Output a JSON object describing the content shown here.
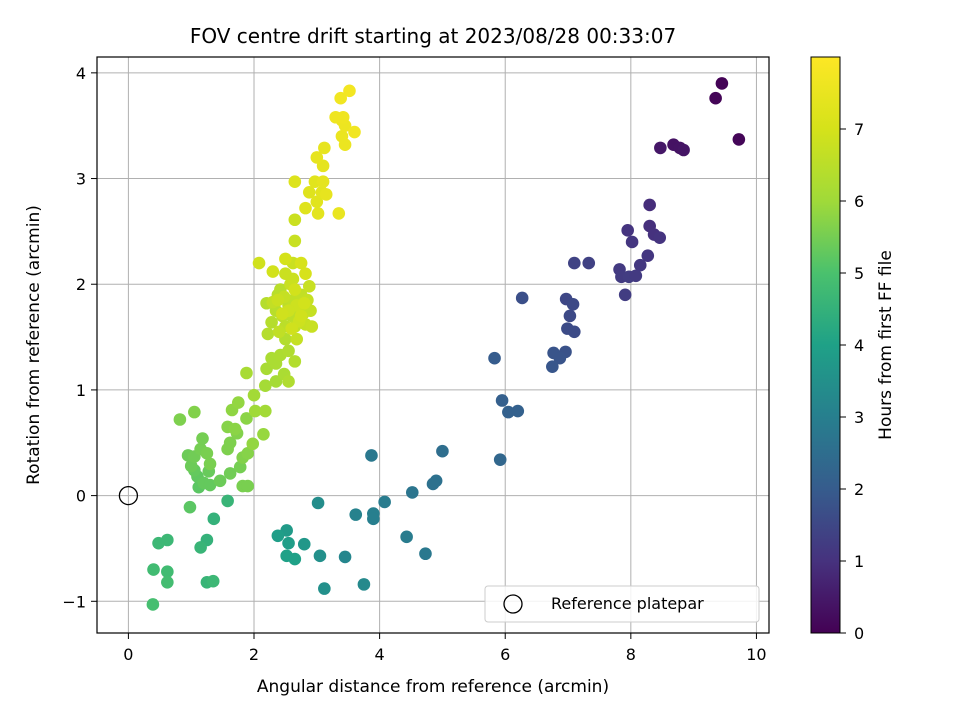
{
  "chart_data": {
    "type": "scatter",
    "title": "FOV centre drift starting at 2023/08/28 00:33:07",
    "xlabel": "Angular distance from reference (arcmin)",
    "ylabel": "Rotation from reference (arcmin)",
    "xlim": [
      -0.5,
      10.2
    ],
    "ylim": [
      -1.3,
      4.15
    ],
    "xticks": [
      0,
      2,
      4,
      6,
      8,
      10
    ],
    "yticks": [
      -1,
      0,
      1,
      2,
      3,
      4
    ],
    "grid": true,
    "legend": {
      "position": "lower-right",
      "entries": [
        "Reference platepar"
      ]
    },
    "colorbar": {
      "label": "Hours from first FF file",
      "range": [
        0,
        8
      ],
      "ticks": [
        0,
        1,
        2,
        3,
        4,
        5,
        6,
        7
      ],
      "colormap": "viridis"
    },
    "reference_point": {
      "x": 0,
      "y": 0,
      "name": "Reference platepar"
    },
    "points": [
      {
        "x": 9.45,
        "y": 3.9,
        "h": 0.05
      },
      {
        "x": 9.35,
        "y": 3.76,
        "h": 0.08
      },
      {
        "x": 9.72,
        "y": 3.37,
        "h": 0.1
      },
      {
        "x": 8.68,
        "y": 3.32,
        "h": 0.35
      },
      {
        "x": 8.78,
        "y": 3.29,
        "h": 0.37
      },
      {
        "x": 8.84,
        "y": 3.27,
        "h": 0.4
      },
      {
        "x": 8.47,
        "y": 3.29,
        "h": 0.45
      },
      {
        "x": 8.3,
        "y": 2.75,
        "h": 0.9
      },
      {
        "x": 8.3,
        "y": 2.55,
        "h": 0.95
      },
      {
        "x": 8.37,
        "y": 2.47,
        "h": 1.0
      },
      {
        "x": 8.46,
        "y": 2.44,
        "h": 1.05
      },
      {
        "x": 8.27,
        "y": 2.27,
        "h": 1.1
      },
      {
        "x": 7.95,
        "y": 2.51,
        "h": 1.05
      },
      {
        "x": 8.02,
        "y": 2.4,
        "h": 1.1
      },
      {
        "x": 8.15,
        "y": 2.18,
        "h": 1.15
      },
      {
        "x": 7.82,
        "y": 2.14,
        "h": 1.2
      },
      {
        "x": 7.85,
        "y": 2.07,
        "h": 1.22
      },
      {
        "x": 7.97,
        "y": 2.07,
        "h": 1.25
      },
      {
        "x": 8.08,
        "y": 2.08,
        "h": 1.2
      },
      {
        "x": 7.91,
        "y": 1.9,
        "h": 1.25
      },
      {
        "x": 7.1,
        "y": 2.2,
        "h": 1.4
      },
      {
        "x": 7.33,
        "y": 2.2,
        "h": 1.35
      },
      {
        "x": 6.97,
        "y": 1.86,
        "h": 1.5
      },
      {
        "x": 7.08,
        "y": 1.81,
        "h": 1.55
      },
      {
        "x": 7.03,
        "y": 1.7,
        "h": 1.55
      },
      {
        "x": 6.99,
        "y": 1.58,
        "h": 1.6
      },
      {
        "x": 7.1,
        "y": 1.55,
        "h": 1.6
      },
      {
        "x": 6.27,
        "y": 1.87,
        "h": 1.7
      },
      {
        "x": 6.77,
        "y": 1.35,
        "h": 1.8
      },
      {
        "x": 6.96,
        "y": 1.36,
        "h": 1.75
      },
      {
        "x": 6.87,
        "y": 1.3,
        "h": 1.8
      },
      {
        "x": 6.75,
        "y": 1.22,
        "h": 1.85
      },
      {
        "x": 5.83,
        "y": 1.3,
        "h": 2.0
      },
      {
        "x": 5.95,
        "y": 0.9,
        "h": 2.1
      },
      {
        "x": 6.05,
        "y": 0.79,
        "h": 2.15
      },
      {
        "x": 6.2,
        "y": 0.8,
        "h": 2.15
      },
      {
        "x": 5.92,
        "y": 0.34,
        "h": 2.3
      },
      {
        "x": 5.0,
        "y": 0.42,
        "h": 2.5
      },
      {
        "x": 4.9,
        "y": 0.14,
        "h": 2.6
      },
      {
        "x": 4.85,
        "y": 0.11,
        "h": 2.6
      },
      {
        "x": 4.52,
        "y": 0.03,
        "h": 2.7
      },
      {
        "x": 3.87,
        "y": 0.38,
        "h": 2.8
      },
      {
        "x": 4.08,
        "y": -0.06,
        "h": 2.9
      },
      {
        "x": 3.9,
        "y": -0.17,
        "h": 3.0
      },
      {
        "x": 3.9,
        "y": -0.22,
        "h": 3.0
      },
      {
        "x": 3.62,
        "y": -0.18,
        "h": 3.1
      },
      {
        "x": 4.43,
        "y": -0.39,
        "h": 2.9
      },
      {
        "x": 4.73,
        "y": -0.55,
        "h": 2.8
      },
      {
        "x": 3.45,
        "y": -0.58,
        "h": 3.2
      },
      {
        "x": 3.75,
        "y": -0.84,
        "h": 3.3
      },
      {
        "x": 3.02,
        "y": -0.07,
        "h": 3.4
      },
      {
        "x": 3.05,
        "y": -0.57,
        "h": 3.5
      },
      {
        "x": 3.12,
        "y": -0.88,
        "h": 3.5
      },
      {
        "x": 2.8,
        "y": -0.46,
        "h": 3.7
      },
      {
        "x": 2.52,
        "y": -0.33,
        "h": 3.8
      },
      {
        "x": 2.38,
        "y": -0.38,
        "h": 3.9
      },
      {
        "x": 2.55,
        "y": -0.45,
        "h": 3.9
      },
      {
        "x": 2.52,
        "y": -0.57,
        "h": 4.0
      },
      {
        "x": 2.65,
        "y": -0.6,
        "h": 4.0
      },
      {
        "x": 1.36,
        "y": -0.22,
        "h": 4.5
      },
      {
        "x": 1.58,
        "y": -0.05,
        "h": 4.6
      },
      {
        "x": 1.25,
        "y": -0.42,
        "h": 4.5
      },
      {
        "x": 1.15,
        "y": -0.49,
        "h": 4.6
      },
      {
        "x": 1.25,
        "y": -0.82,
        "h": 4.6
      },
      {
        "x": 1.35,
        "y": -0.81,
        "h": 4.7
      },
      {
        "x": 0.62,
        "y": -0.42,
        "h": 4.7
      },
      {
        "x": 0.48,
        "y": -0.45,
        "h": 4.7
      },
      {
        "x": 0.62,
        "y": -0.72,
        "h": 4.8
      },
      {
        "x": 0.4,
        "y": -0.7,
        "h": 4.8
      },
      {
        "x": 0.62,
        "y": -0.82,
        "h": 4.85
      },
      {
        "x": 0.39,
        "y": -1.03,
        "h": 4.9
      },
      {
        "x": 0.98,
        "y": -0.11,
        "h": 5.2
      },
      {
        "x": 1.12,
        "y": 0.08,
        "h": 5.2
      },
      {
        "x": 1.1,
        "y": 0.18,
        "h": 5.25
      },
      {
        "x": 1.05,
        "y": 0.24,
        "h": 5.3
      },
      {
        "x": 1.2,
        "y": 0.12,
        "h": 5.3
      },
      {
        "x": 1.28,
        "y": 0.23,
        "h": 5.35
      },
      {
        "x": 1.3,
        "y": 0.1,
        "h": 5.3
      },
      {
        "x": 1.46,
        "y": 0.14,
        "h": 5.4
      },
      {
        "x": 1.62,
        "y": 0.21,
        "h": 5.45
      },
      {
        "x": 1.78,
        "y": 0.27,
        "h": 5.5
      },
      {
        "x": 1.82,
        "y": 0.09,
        "h": 5.55
      },
      {
        "x": 1.9,
        "y": 0.09,
        "h": 5.55
      },
      {
        "x": 0.95,
        "y": 0.38,
        "h": 5.4
      },
      {
        "x": 1.0,
        "y": 0.28,
        "h": 5.4
      },
      {
        "x": 1.05,
        "y": 0.37,
        "h": 5.45
      },
      {
        "x": 1.15,
        "y": 0.44,
        "h": 5.5
      },
      {
        "x": 1.18,
        "y": 0.54,
        "h": 5.5
      },
      {
        "x": 1.25,
        "y": 0.4,
        "h": 5.55
      },
      {
        "x": 1.3,
        "y": 0.3,
        "h": 5.55
      },
      {
        "x": 1.58,
        "y": 0.44,
        "h": 5.6
      },
      {
        "x": 1.62,
        "y": 0.5,
        "h": 5.6
      },
      {
        "x": 1.73,
        "y": 0.59,
        "h": 5.65
      },
      {
        "x": 1.82,
        "y": 0.36,
        "h": 5.65
      },
      {
        "x": 1.9,
        "y": 0.4,
        "h": 5.7
      },
      {
        "x": 0.82,
        "y": 0.72,
        "h": 5.6
      },
      {
        "x": 1.05,
        "y": 0.79,
        "h": 5.65
      },
      {
        "x": 1.58,
        "y": 0.65,
        "h": 5.7
      },
      {
        "x": 1.7,
        "y": 0.63,
        "h": 5.75
      },
      {
        "x": 1.88,
        "y": 0.73,
        "h": 5.75
      },
      {
        "x": 1.65,
        "y": 0.81,
        "h": 5.8
      },
      {
        "x": 1.75,
        "y": 0.88,
        "h": 5.85
      },
      {
        "x": 1.98,
        "y": 0.49,
        "h": 5.85
      },
      {
        "x": 2.15,
        "y": 0.58,
        "h": 5.9
      },
      {
        "x": 2.02,
        "y": 0.8,
        "h": 6.0
      },
      {
        "x": 2.18,
        "y": 0.8,
        "h": 6.05
      },
      {
        "x": 2.0,
        "y": 0.95,
        "h": 6.05
      },
      {
        "x": 2.18,
        "y": 1.04,
        "h": 6.1
      },
      {
        "x": 2.35,
        "y": 1.08,
        "h": 6.1
      },
      {
        "x": 1.88,
        "y": 1.16,
        "h": 6.15
      },
      {
        "x": 2.2,
        "y": 1.2,
        "h": 6.15
      },
      {
        "x": 2.35,
        "y": 1.25,
        "h": 6.2
      },
      {
        "x": 2.28,
        "y": 1.3,
        "h": 6.2
      },
      {
        "x": 2.42,
        "y": 1.33,
        "h": 6.25
      },
      {
        "x": 2.48,
        "y": 1.15,
        "h": 6.2
      },
      {
        "x": 2.55,
        "y": 1.08,
        "h": 6.3
      },
      {
        "x": 2.55,
        "y": 1.37,
        "h": 6.3
      },
      {
        "x": 2.5,
        "y": 1.48,
        "h": 6.35
      },
      {
        "x": 2.65,
        "y": 1.27,
        "h": 6.35
      },
      {
        "x": 2.22,
        "y": 1.53,
        "h": 6.4
      },
      {
        "x": 2.28,
        "y": 1.64,
        "h": 6.4
      },
      {
        "x": 2.2,
        "y": 1.82,
        "h": 6.4
      },
      {
        "x": 2.35,
        "y": 1.75,
        "h": 6.45
      },
      {
        "x": 2.38,
        "y": 1.9,
        "h": 6.45
      },
      {
        "x": 2.42,
        "y": 1.95,
        "h": 6.45
      },
      {
        "x": 2.45,
        "y": 1.7,
        "h": 6.5
      },
      {
        "x": 2.5,
        "y": 1.6,
        "h": 6.5
      },
      {
        "x": 2.55,
        "y": 1.8,
        "h": 6.55
      },
      {
        "x": 2.6,
        "y": 1.7,
        "h": 6.55
      },
      {
        "x": 2.62,
        "y": 1.85,
        "h": 6.6
      },
      {
        "x": 2.65,
        "y": 1.6,
        "h": 6.6
      },
      {
        "x": 2.7,
        "y": 1.78,
        "h": 6.6
      },
      {
        "x": 2.75,
        "y": 1.9,
        "h": 6.65
      },
      {
        "x": 2.78,
        "y": 1.72,
        "h": 6.65
      },
      {
        "x": 2.82,
        "y": 1.62,
        "h": 6.7
      },
      {
        "x": 2.85,
        "y": 1.85,
        "h": 6.7
      },
      {
        "x": 2.9,
        "y": 1.75,
        "h": 6.7
      },
      {
        "x": 2.92,
        "y": 1.6,
        "h": 6.75
      },
      {
        "x": 2.88,
        "y": 1.98,
        "h": 6.75
      },
      {
        "x": 2.68,
        "y": 1.48,
        "h": 6.7
      },
      {
        "x": 2.4,
        "y": 1.55,
        "h": 6.6
      },
      {
        "x": 2.3,
        "y": 1.83,
        "h": 6.65
      },
      {
        "x": 2.48,
        "y": 1.88,
        "h": 6.7
      },
      {
        "x": 2.58,
        "y": 2.0,
        "h": 6.75
      },
      {
        "x": 2.62,
        "y": 2.05,
        "h": 6.8
      },
      {
        "x": 2.5,
        "y": 2.1,
        "h": 6.8
      },
      {
        "x": 2.38,
        "y": 1.85,
        "h": 6.8
      },
      {
        "x": 2.72,
        "y": 1.65,
        "h": 6.85
      },
      {
        "x": 2.68,
        "y": 1.8,
        "h": 6.85
      },
      {
        "x": 2.55,
        "y": 1.75,
        "h": 6.85
      },
      {
        "x": 2.45,
        "y": 1.72,
        "h": 6.9
      },
      {
        "x": 2.6,
        "y": 1.58,
        "h": 6.9
      },
      {
        "x": 2.75,
        "y": 1.7,
        "h": 6.9
      },
      {
        "x": 2.8,
        "y": 1.82,
        "h": 6.95
      },
      {
        "x": 2.65,
        "y": 1.95,
        "h": 6.95
      },
      {
        "x": 2.62,
        "y": 2.2,
        "h": 6.8
      },
      {
        "x": 2.65,
        "y": 2.41,
        "h": 6.75
      },
      {
        "x": 2.65,
        "y": 2.61,
        "h": 6.8
      },
      {
        "x": 2.08,
        "y": 2.2,
        "h": 6.9
      },
      {
        "x": 2.3,
        "y": 2.12,
        "h": 6.95
      },
      {
        "x": 2.5,
        "y": 2.24,
        "h": 7.0
      },
      {
        "x": 2.75,
        "y": 2.2,
        "h": 7.05
      },
      {
        "x": 2.82,
        "y": 2.1,
        "h": 7.05
      },
      {
        "x": 2.65,
        "y": 2.97,
        "h": 7.2
      },
      {
        "x": 2.82,
        "y": 2.72,
        "h": 7.25
      },
      {
        "x": 2.88,
        "y": 2.87,
        "h": 7.25
      },
      {
        "x": 2.97,
        "y": 2.97,
        "h": 7.3
      },
      {
        "x": 3.0,
        "y": 2.78,
        "h": 7.3
      },
      {
        "x": 3.02,
        "y": 2.67,
        "h": 7.35
      },
      {
        "x": 3.08,
        "y": 2.87,
        "h": 7.35
      },
      {
        "x": 3.1,
        "y": 2.97,
        "h": 7.4
      },
      {
        "x": 3.1,
        "y": 3.12,
        "h": 7.4
      },
      {
        "x": 3.12,
        "y": 3.29,
        "h": 7.45
      },
      {
        "x": 3.0,
        "y": 3.2,
        "h": 7.45
      },
      {
        "x": 3.15,
        "y": 2.85,
        "h": 7.45
      },
      {
        "x": 3.35,
        "y": 2.67,
        "h": 7.5
      },
      {
        "x": 3.4,
        "y": 3.4,
        "h": 7.55
      },
      {
        "x": 3.45,
        "y": 3.32,
        "h": 7.55
      },
      {
        "x": 3.4,
        "y": 3.55,
        "h": 7.6
      },
      {
        "x": 3.45,
        "y": 3.5,
        "h": 7.6
      },
      {
        "x": 3.42,
        "y": 3.58,
        "h": 7.65
      },
      {
        "x": 3.3,
        "y": 3.58,
        "h": 7.65
      },
      {
        "x": 3.38,
        "y": 3.76,
        "h": 7.7
      },
      {
        "x": 3.52,
        "y": 3.83,
        "h": 7.75
      },
      {
        "x": 3.6,
        "y": 3.44,
        "h": 7.7
      }
    ]
  }
}
